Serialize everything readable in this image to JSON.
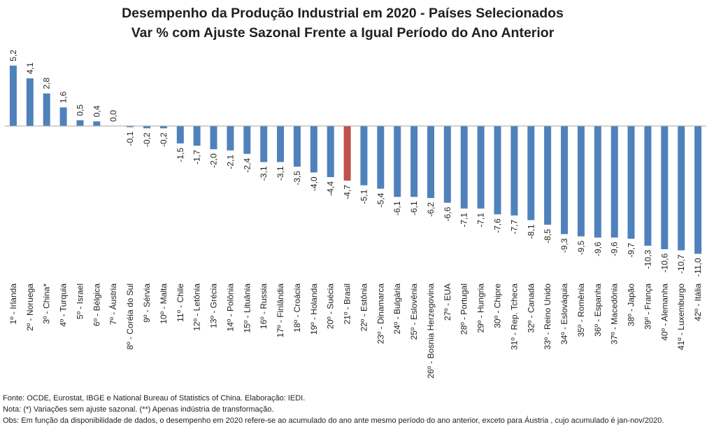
{
  "title_line1": "Desempenho da Produção Industrial em 2020 - Países Selecionados",
  "title_line2": "Var % com Ajuste Sazonal Frente a Igual Período do Ano Anterior",
  "chart_data": {
    "type": "bar",
    "title": "Desempenho da Produção Industrial em 2020 - Países Selecionados / Var % com Ajuste Sazonal Frente a Igual Período do Ano Anterior",
    "categories": [
      "1º - Irlanda",
      "2º - Noruega",
      "3º - China*",
      "4º - Turquia",
      "5º - Israel",
      "6º - Bélgica",
      "7º - Áustria",
      "8º - Coréia do Sul",
      "9º - Sérvia",
      "10º - Malta",
      "11º - Chile",
      "12º - Letônia",
      "13º - Grécia",
      "14º - Polônia",
      "15º - Lituânia",
      "16º - Russia",
      "17º - Finlândia",
      "18º - Croácia",
      "19º - Holanda",
      "20º - Suécia",
      "21º - Brasil",
      "22º - Estônia",
      "23º - Dinamarca",
      "24º - Bulgária",
      "25º - Eslovênia",
      "26º - Bosnia Herzegovina",
      "27º - EUA",
      "28º - Portugal",
      "29º - Hungria",
      "30º - Chipre",
      "31º - Rep. Tcheca",
      "32º - Canadá",
      "33º - Reino Unido",
      "34º - Eslováquia",
      "35º - Romênia",
      "36º - Espanha",
      "37º - Macedônia",
      "38º - Japão",
      "39º - França",
      "40º - Alemanha",
      "41º - Luxemburgo",
      "42º - Itália"
    ],
    "values": [
      5.2,
      4.1,
      2.8,
      1.6,
      0.5,
      0.4,
      0.0,
      -0.1,
      -0.2,
      -0.2,
      -1.5,
      -1.7,
      -2.0,
      -2.1,
      -2.4,
      -3.1,
      -3.1,
      -3.5,
      -4.0,
      -4.4,
      -4.7,
      -5.1,
      -5.4,
      -6.1,
      -6.1,
      -6.2,
      -6.6,
      -7.1,
      -7.1,
      -7.6,
      -7.7,
      -8.1,
      -8.5,
      -9.3,
      -9.5,
      -9.6,
      -9.6,
      -9.7,
      -10.3,
      -10.6,
      -10.7,
      -11.0
    ],
    "value_labels": [
      "5,2",
      "4,1",
      "2,8",
      "1,6",
      "0,5",
      "0,4",
      "0,0",
      "-0,1",
      "-0,2",
      "-0,2",
      "-1,5",
      "-1,7",
      "-2,0",
      "-2,1",
      "-2,4",
      "-3,1",
      "-3,1",
      "-3,5",
      "-4,0",
      "-4,4",
      "-4,7",
      "-5,1",
      "-5,4",
      "-6,1",
      "-6,1",
      "-6,2",
      "-6,6",
      "-7,1",
      "-7,1",
      "-7,6",
      "-7,7",
      "-8,1",
      "-8,5",
      "-9,3",
      "-9,5",
      "-9,6",
      "-9,6",
      "-9,7",
      "-10,3",
      "-10,6",
      "-10,7",
      "-11,0"
    ],
    "highlight_category": "21º - Brasil",
    "colors": {
      "default": "#4f81bd",
      "highlight": "#c0504d"
    },
    "ylim": [
      -11.0,
      5.2
    ],
    "grid": false,
    "legend": "none"
  },
  "notes": {
    "fonte": "Fonte:  OCDE, Eurostat, IBGE e National Bureau of Statistics of China. Elaboração: IEDI.",
    "nota": "Nota: (*) Variações sem ajuste sazonal. (**) Apenas indústria de transformação.",
    "obs": "Obs: Em função da disponibilidade de dados, o desempenho  em 2020 refere-se ao acumulado do ano ante mesmo período do ano anterior, exceto para Áustria , cujo acumulado é jan-nov/2020."
  }
}
